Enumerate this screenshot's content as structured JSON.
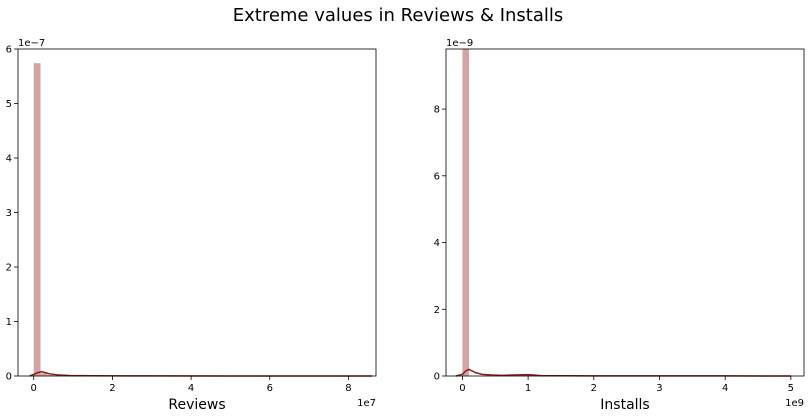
{
  "title": "Extreme values in Reviews & Installs",
  "colors": {
    "bar": "#d4a3a3",
    "kde": "#8b1a1a",
    "frame": "#000000"
  },
  "chart_data": [
    {
      "type": "bar",
      "xlabel": "Reviews",
      "ylabel": "",
      "x_offset_label": "1e7",
      "y_offset_label": "1e−7",
      "xlim": [
        -0.4,
        8.7
      ],
      "ylim": [
        0,
        6
      ],
      "xticks": [
        0,
        2,
        4,
        6,
        8
      ],
      "yticks": [
        0,
        1,
        2,
        3,
        4,
        5,
        6
      ],
      "bin_width": 0.172,
      "bins": [
        {
          "x": 0.0,
          "height": 5.74
        },
        {
          "x": 0.172,
          "height": 0.05
        },
        {
          "x": 0.344,
          "height": 0.02
        },
        {
          "x": 0.516,
          "height": 0.01
        }
      ],
      "kde": {
        "x": [
          -0.1,
          0.0,
          0.1,
          0.2,
          0.3,
          0.4,
          0.6,
          0.9,
          1.5,
          3.0,
          5.0,
          8.6
        ],
        "y": [
          0.0,
          0.03,
          0.06,
          0.08,
          0.06,
          0.04,
          0.02,
          0.01,
          0.005,
          0.002,
          0.001,
          0.0
        ]
      }
    },
    {
      "type": "bar",
      "xlabel": "Installs",
      "ylabel": "",
      "x_offset_label": "1e9",
      "y_offset_label": "1e−9",
      "xlim": [
        -0.25,
        5.2
      ],
      "ylim": [
        0,
        9.8
      ],
      "xticks": [
        0,
        1,
        2,
        3,
        4,
        5
      ],
      "yticks": [
        0,
        2,
        4,
        6,
        8
      ],
      "bin_width": 0.1,
      "bins": [
        {
          "x": 0.0,
          "height": 9.8
        },
        {
          "x": 0.5,
          "height": 0.03
        },
        {
          "x": 1.0,
          "height": 0.05
        }
      ],
      "kde": {
        "x": [
          -0.1,
          0.0,
          0.05,
          0.1,
          0.15,
          0.2,
          0.3,
          0.45,
          0.6,
          1.0,
          1.2,
          2.0,
          3.0,
          4.0,
          5.0
        ],
        "y": [
          0.0,
          0.05,
          0.15,
          0.2,
          0.15,
          0.1,
          0.05,
          0.03,
          0.02,
          0.04,
          0.01,
          0.005,
          0.003,
          0.002,
          0.0
        ]
      }
    }
  ]
}
